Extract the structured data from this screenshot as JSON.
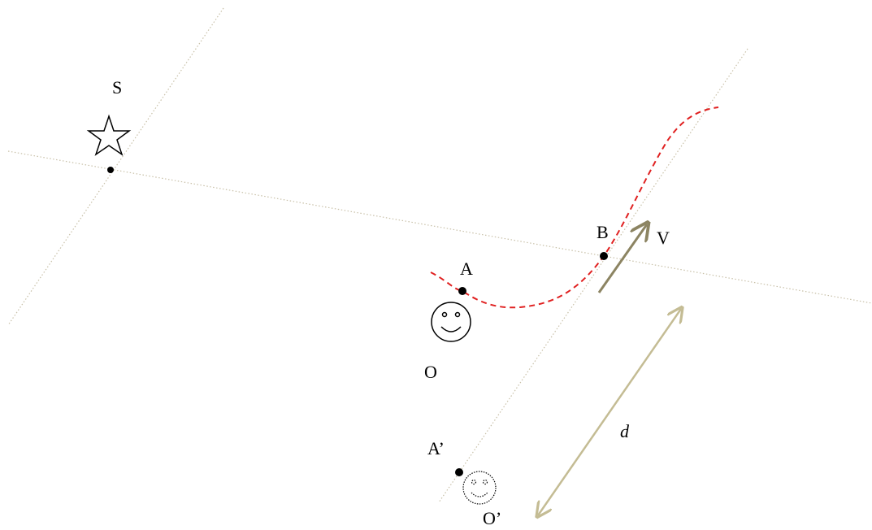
{
  "nodes": [
    {
      "label": "S"
    },
    {
      "label": "B"
    },
    {
      "label": "V"
    },
    {
      "label": "A"
    },
    {
      "label": "O"
    },
    {
      "label": "d"
    },
    {
      "label": "A’"
    },
    {
      "label": "O’"
    }
  ]
}
